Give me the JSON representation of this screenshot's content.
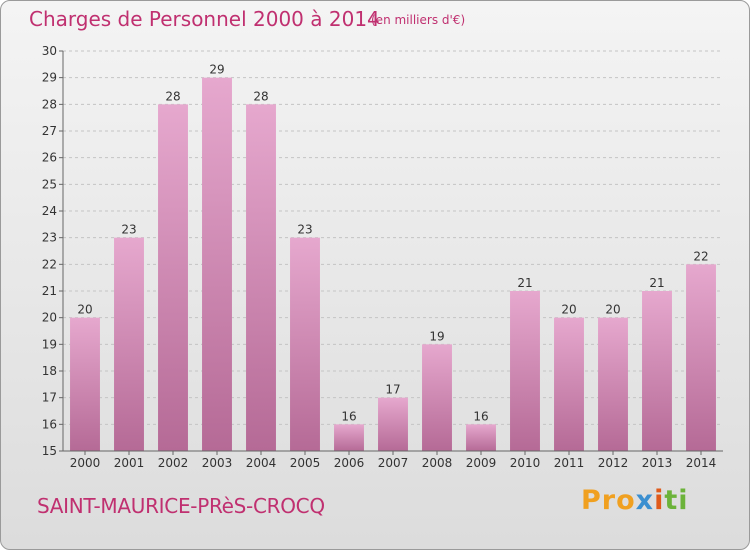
{
  "header": {
    "title": "Charges de Personnel 2000 à 2014",
    "subtitle": "(en milliers d'€)"
  },
  "footer": {
    "commune": "SAINT-MAURICE-PRèS-CROCQ",
    "logo": {
      "p1": "Pro",
      "p2": "x",
      "p3": "i",
      "p4": "ti"
    }
  },
  "colors": {
    "bar_top": "#e6a8ce",
    "bar_bottom": "#b56a96",
    "title": "#c03070"
  },
  "chart_data": {
    "type": "bar",
    "title": "Charges de Personnel 2000 à 2014",
    "subtitle": "(en milliers d'€)",
    "categories": [
      "2000",
      "2001",
      "2002",
      "2003",
      "2004",
      "2005",
      "2006",
      "2007",
      "2008",
      "2009",
      "2010",
      "2011",
      "2012",
      "2013",
      "2014"
    ],
    "values": [
      20,
      23,
      28,
      29,
      28,
      23,
      16,
      17,
      19,
      16,
      21,
      20,
      20,
      21,
      22
    ],
    "xlabel": "",
    "ylabel": "",
    "ylim": [
      15,
      30
    ],
    "yticks": [
      15,
      16,
      17,
      18,
      19,
      20,
      21,
      22,
      23,
      24,
      25,
      26,
      27,
      28,
      29,
      30
    ],
    "grid": true
  }
}
